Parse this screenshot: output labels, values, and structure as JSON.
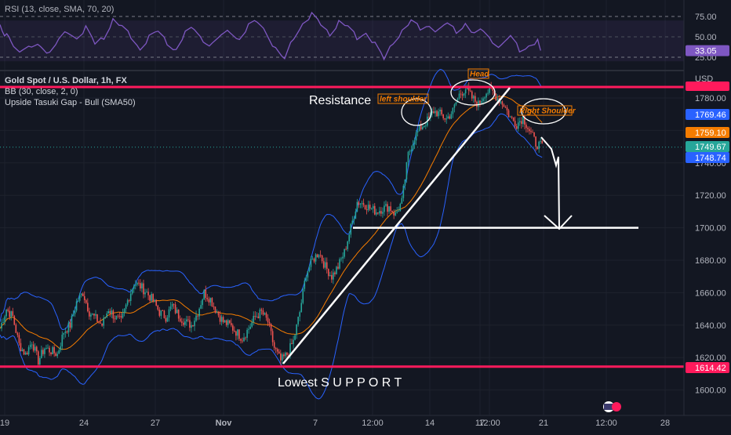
{
  "rsi_header": "RSI (13, close, SMA, 70, 20)",
  "symbol_header": "Gold Spot / U.S. Dollar, 1h, FX",
  "bb_header": "BB (30, close, 2, 0)",
  "pattern_header": "Upside Tasuki Gap - Bull (SMA50)",
  "currency": "USD",
  "colors": {
    "background": "#131722",
    "up_candle": "#26a69a",
    "down_candle": "#ef5350",
    "bollinger": "#2962ff",
    "sma": "#f57c00",
    "support_resistance": "#ff1a5c",
    "rsi_line": "#7e57c2",
    "drawings": "#ffffff"
  },
  "annotations": {
    "resistance": "Resistance",
    "support": "Lowest S U P P O R T",
    "left_shoulder": "left shoulder",
    "head": "Head",
    "right_shoulder": "Right Shoulder"
  },
  "chart_data": {
    "type": "candlestick",
    "price_axis": {
      "ticks": [
        "1780.00",
        "1760.00",
        "1740.00",
        "1720.00",
        "1700.00",
        "1680.00",
        "1660.00",
        "1640.00",
        "1620.00",
        "1600.00"
      ],
      "range": [
        1596,
        1800
      ]
    },
    "rsi_axis": {
      "ticks": [
        "75.00",
        "50.00",
        "25.00"
      ],
      "range": [
        10,
        90
      ],
      "upper_band": 70,
      "lower_band": 20
    },
    "x_tick_labels": [
      "19",
      "24",
      "27",
      "Nov",
      "7",
      "12:00",
      "14",
      "17",
      "12:00",
      "21",
      "12:00",
      "28"
    ],
    "price_labels": [
      {
        "text": "1769.46",
        "value": 1769.46,
        "color": "#2962ff"
      },
      {
        "text": "1759.10",
        "value": 1759.1,
        "color": "#f57c00"
      },
      {
        "text": "1749.67",
        "value": 1749.67,
        "color": "#26a69a"
      },
      {
        "text": "1748.74",
        "value": 1748.74,
        "color": "#2962ff"
      },
      {
        "text": "1614.42",
        "value": 1614.42,
        "color": "#ff1a5c"
      }
    ],
    "rsi_label": {
      "text": "33.05",
      "value": 33.05
    },
    "resistance_level": 1789,
    "support_level": 1614.42,
    "target_level": 1700,
    "price_path": [
      [
        0,
        1638
      ],
      [
        4,
        1650
      ],
      [
        8,
        1645
      ],
      [
        12,
        1628
      ],
      [
        16,
        1622
      ],
      [
        20,
        1630
      ],
      [
        24,
        1618
      ],
      [
        28,
        1626
      ],
      [
        32,
        1624
      ],
      [
        36,
        1622
      ],
      [
        40,
        1636
      ],
      [
        44,
        1640
      ],
      [
        48,
        1654
      ],
      [
        52,
        1660
      ],
      [
        56,
        1648
      ],
      [
        60,
        1644
      ],
      [
        64,
        1640
      ],
      [
        68,
        1650
      ],
      [
        72,
        1645
      ],
      [
        76,
        1642
      ],
      [
        80,
        1655
      ],
      [
        84,
        1666
      ],
      [
        88,
        1664
      ],
      [
        92,
        1660
      ],
      [
        96,
        1655
      ],
      [
        100,
        1648
      ],
      [
        104,
        1645
      ],
      [
        108,
        1652
      ],
      [
        112,
        1646
      ],
      [
        116,
        1642
      ],
      [
        120,
        1640
      ],
      [
        124,
        1648
      ],
      [
        128,
        1660
      ],
      [
        132,
        1656
      ],
      [
        136,
        1648
      ],
      [
        140,
        1642
      ],
      [
        144,
        1640
      ],
      [
        148,
        1636
      ],
      [
        152,
        1632
      ],
      [
        156,
        1638
      ],
      [
        160,
        1645
      ],
      [
        164,
        1648
      ],
      [
        168,
        1642
      ],
      [
        172,
        1626
      ],
      [
        176,
        1618
      ],
      [
        180,
        1622
      ],
      [
        184,
        1630
      ],
      [
        188,
        1648
      ],
      [
        192,
        1672
      ],
      [
        196,
        1680
      ],
      [
        200,
        1685
      ],
      [
        204,
        1676
      ],
      [
        208,
        1670
      ],
      [
        212,
        1676
      ],
      [
        216,
        1685
      ],
      [
        220,
        1700
      ],
      [
        224,
        1716
      ],
      [
        228,
        1715
      ],
      [
        232,
        1712
      ],
      [
        236,
        1710
      ],
      [
        240,
        1712
      ],
      [
        244,
        1713
      ],
      [
        248,
        1708
      ],
      [
        252,
        1716
      ],
      [
        256,
        1745
      ],
      [
        260,
        1756
      ],
      [
        264,
        1762
      ],
      [
        268,
        1766
      ],
      [
        272,
        1772
      ],
      [
        276,
        1770
      ],
      [
        280,
        1767
      ],
      [
        284,
        1772
      ],
      [
        288,
        1782
      ],
      [
        292,
        1786
      ],
      [
        296,
        1780
      ],
      [
        300,
        1776
      ],
      [
        304,
        1783
      ],
      [
        308,
        1785
      ],
      [
        312,
        1780
      ],
      [
        316,
        1776
      ],
      [
        320,
        1768
      ],
      [
        324,
        1764
      ],
      [
        328,
        1768
      ],
      [
        332,
        1760
      ],
      [
        336,
        1752
      ],
      [
        340,
        1750
      ]
    ],
    "rsi_path": [
      [
        0,
        65
      ],
      [
        3,
        50
      ],
      [
        6,
        40
      ],
      [
        10,
        30
      ],
      [
        14,
        37
      ],
      [
        18,
        42
      ],
      [
        22,
        30
      ],
      [
        26,
        44
      ],
      [
        30,
        57
      ],
      [
        34,
        50
      ],
      [
        38,
        60
      ],
      [
        42,
        40
      ],
      [
        46,
        51
      ],
      [
        50,
        72
      ],
      [
        54,
        60
      ],
      [
        58,
        50
      ],
      [
        62,
        37
      ],
      [
        66,
        49
      ],
      [
        70,
        55
      ],
      [
        74,
        44
      ],
      [
        78,
        35
      ],
      [
        82,
        53
      ],
      [
        86,
        60
      ],
      [
        90,
        47
      ],
      [
        94,
        40
      ],
      [
        98,
        50
      ],
      [
        102,
        58
      ],
      [
        106,
        48
      ],
      [
        110,
        62
      ],
      [
        114,
        68
      ],
      [
        118,
        57
      ],
      [
        122,
        35
      ],
      [
        126,
        20
      ],
      [
        130,
        50
      ],
      [
        134,
        68
      ],
      [
        138,
        76
      ],
      [
        142,
        64
      ],
      [
        146,
        55
      ],
      [
        150,
        69
      ],
      [
        154,
        60
      ],
      [
        158,
        49
      ],
      [
        162,
        57
      ],
      [
        166,
        40
      ],
      [
        170,
        21
      ],
      [
        174,
        45
      ],
      [
        178,
        58
      ],
      [
        182,
        67
      ],
      [
        186,
        60
      ],
      [
        190,
        66
      ],
      [
        194,
        56
      ],
      [
        198,
        65
      ],
      [
        202,
        58
      ],
      [
        206,
        67
      ],
      [
        210,
        51
      ],
      [
        214,
        58
      ],
      [
        218,
        46
      ],
      [
        222,
        38
      ],
      [
        226,
        49
      ],
      [
        230,
        35
      ],
      [
        234,
        40
      ],
      [
        238,
        43
      ],
      [
        240,
        34
      ]
    ]
  }
}
